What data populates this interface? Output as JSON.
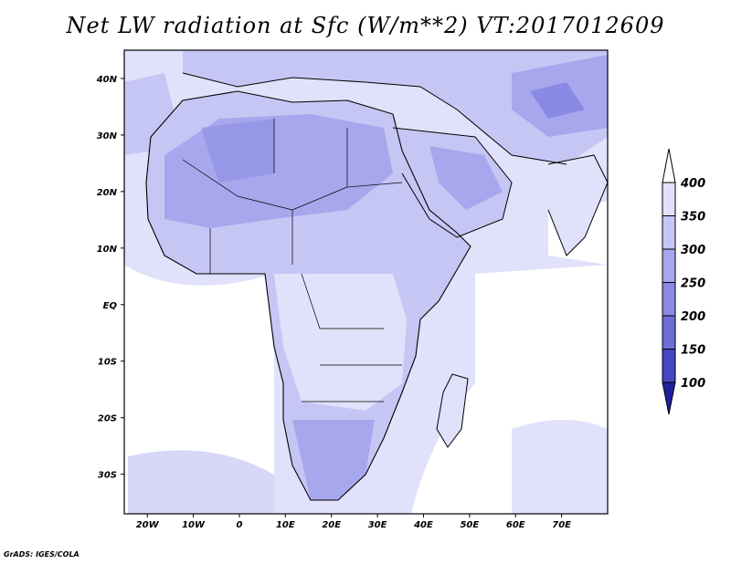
{
  "title": "Net LW radiation at Sfc (W/m**2) VT:2017012609",
  "credit": "GrADS: IGES/COLA",
  "map": {
    "lon_range": [
      -25,
      80
    ],
    "lat_range": [
      -37,
      45
    ],
    "lat_ticks": [
      {
        "lat": 40,
        "label": "40N"
      },
      {
        "lat": 30,
        "label": "30N"
      },
      {
        "lat": 20,
        "label": "20N"
      },
      {
        "lat": 10,
        "label": "10N"
      },
      {
        "lat": 0,
        "label": "EQ"
      },
      {
        "lat": -10,
        "label": "10S"
      },
      {
        "lat": -20,
        "label": "20S"
      },
      {
        "lat": -30,
        "label": "30S"
      }
    ],
    "lon_ticks": [
      {
        "lon": -20,
        "label": "20W"
      },
      {
        "lon": -10,
        "label": "10W"
      },
      {
        "lon": 0,
        "label": "0"
      },
      {
        "lon": 10,
        "label": "10E"
      },
      {
        "lon": 20,
        "label": "20E"
      },
      {
        "lon": 30,
        "label": "30E"
      },
      {
        "lon": 40,
        "label": "40E"
      },
      {
        "lon": 50,
        "label": "50E"
      },
      {
        "lon": 60,
        "label": "60E"
      },
      {
        "lon": 70,
        "label": "70E"
      }
    ]
  },
  "colorbar": {
    "levels": [
      "400",
      "350",
      "300",
      "250",
      "200",
      "150",
      "100"
    ],
    "colors": {
      "over_400": "#ffffff",
      "350_400": "#e1e1fb",
      "300_350": "#c6c6f5",
      "250_300": "#a7a7ee",
      "200_250": "#8a8ae4",
      "150_200": "#6d6dd6",
      "100_150": "#4646c2",
      "under_100": "#2020a0"
    }
  }
}
